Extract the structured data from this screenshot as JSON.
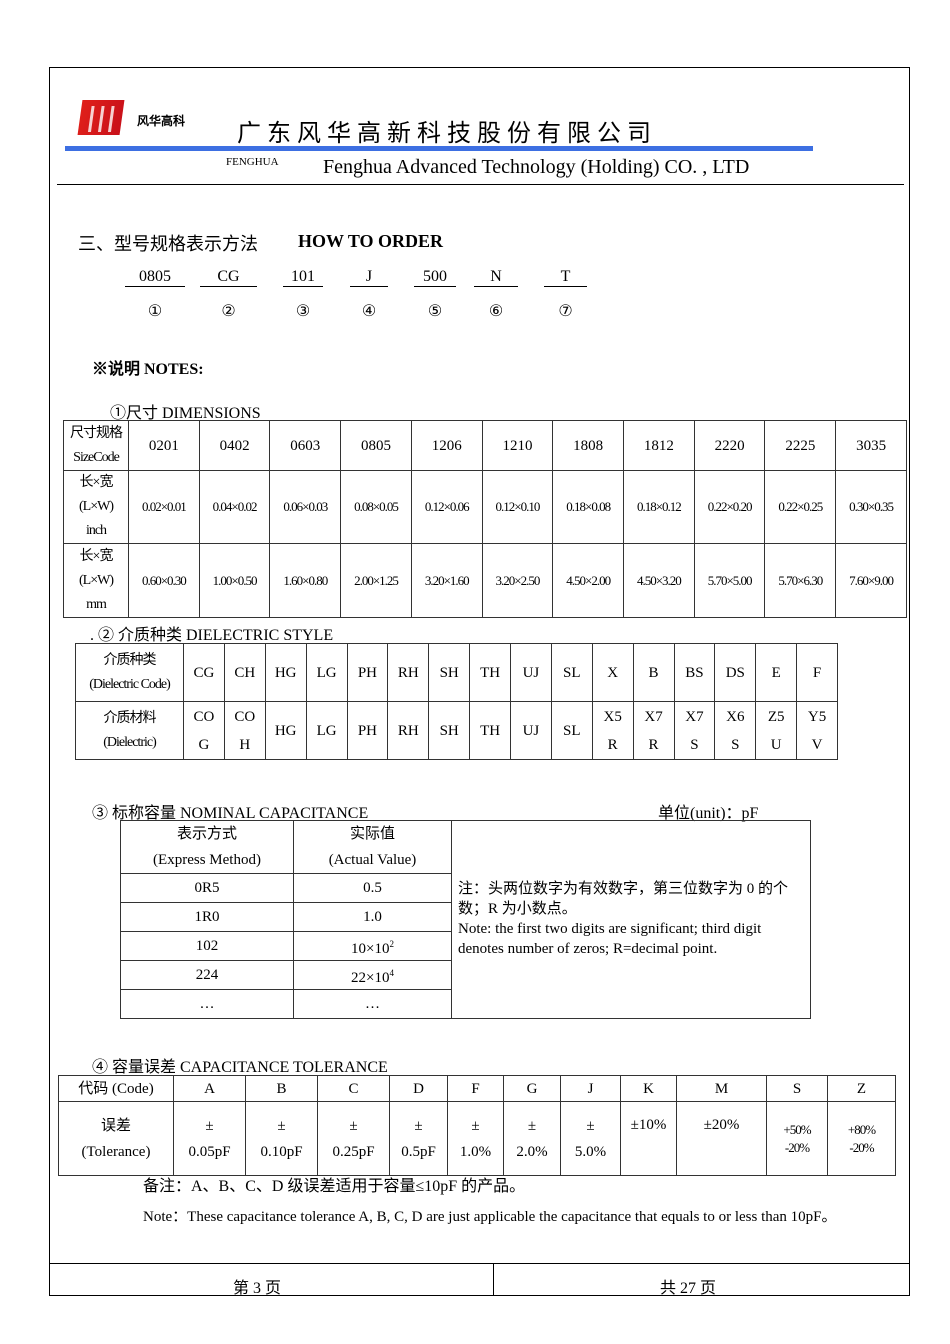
{
  "header": {
    "logo_text": "风华高科",
    "company_cn": "广 东 风 华 高 新 科 技 股 份 有 限 公 司",
    "brand": "FENGHUA",
    "company_en": "Fenghua Advanced Technology (Holding) CO. , LTD"
  },
  "section": {
    "title_cn": "三、型号规格表示方法",
    "title_en": "HOW TO ORDER"
  },
  "order_codes": [
    "0805",
    "CG",
    "101",
    "J",
    "500",
    "N",
    "T"
  ],
  "order_marks": [
    "①",
    "②",
    "③",
    "④",
    "⑤",
    "⑥",
    "⑦"
  ],
  "notes_title": "※说明  NOTES:",
  "dimensions": {
    "title": "①尺寸    DIMENSIONS",
    "row_labels": [
      [
        "尺寸规格",
        "SizeCode"
      ],
      [
        "长×宽",
        "(L×W)",
        "inch"
      ],
      [
        "长×宽",
        "(L×W)",
        "mm"
      ]
    ],
    "codes": [
      "0201",
      "0402",
      "0603",
      "0805",
      "1206",
      "1210",
      "1808",
      "1812",
      "2220",
      "2225",
      "3035"
    ],
    "inch": [
      "0.02×0.01",
      "0.04×0.02",
      "0.06×0.03",
      "0.08×0.05",
      "0.12×0.06",
      "0.12×0.10",
      "0.18×0.08",
      "0.18×0.12",
      "0.22×0.20",
      "0.22×0.25",
      "0.30×0.35"
    ],
    "mm": [
      "0.60×0.30",
      "1.00×0.50",
      "1.60×0.80",
      "2.00×1.25",
      "3.20×1.60",
      "3.20×2.50",
      "4.50×2.00",
      "4.50×3.20",
      "5.70×5.00",
      "5.70×6.30",
      "7.60×9.00"
    ]
  },
  "dielectric": {
    "title": ".  ②  介质种类 DIELECTRIC STYLE",
    "row_labels": [
      [
        "介质种类",
        "(Dielectric Code)"
      ],
      [
        "介质材料",
        "(Dielectric)"
      ]
    ],
    "codes": [
      "CG",
      "CH",
      "HG",
      "LG",
      "PH",
      "RH",
      "SH",
      "TH",
      "UJ",
      "SL",
      "X",
      "B",
      "BS",
      "DS",
      "E",
      "F"
    ],
    "materials": [
      [
        "CO",
        "G"
      ],
      [
        "CO",
        "H"
      ],
      [
        "HG"
      ],
      [
        "LG"
      ],
      [
        "PH"
      ],
      [
        "RH"
      ],
      [
        "SH"
      ],
      [
        "TH"
      ],
      [
        "UJ"
      ],
      [
        "SL"
      ],
      [
        "X5",
        "R"
      ],
      [
        "X7",
        "R"
      ],
      [
        "X7",
        "S"
      ],
      [
        "X6",
        "S"
      ],
      [
        "Z5",
        "U"
      ],
      [
        "Y5",
        "V"
      ]
    ]
  },
  "capacitance": {
    "title": "③  标称容量  NOMINAL CAPACITANCE",
    "unit": "单位(unit)：pF",
    "headers": [
      [
        "表示方式",
        "(Express Method)"
      ],
      [
        "实际值",
        "(Actual Value)"
      ]
    ],
    "rows": [
      [
        "0R5",
        "0.5"
      ],
      [
        "1R0",
        "1.0"
      ],
      [
        "102",
        "10×10",
        "2"
      ],
      [
        "224",
        "22×10",
        "4"
      ],
      [
        "…",
        "…"
      ]
    ],
    "note_cn": "注：头两位数字为有效数字，第三位数字为 0 的个数；R 为小数点。",
    "note_en": "Note: the first two digits are significant; third digit denotes number of zeros; R=decimal point."
  },
  "tolerance": {
    "title": "④  容量误差 CAPACITANCE TOLERANCE",
    "row_labels": [
      [
        "代码  (Code)"
      ],
      [
        "误差",
        "(Tolerance)"
      ]
    ],
    "codes": [
      "A",
      "B",
      "C",
      "D",
      "F",
      "G",
      "J",
      "K",
      "M",
      "S",
      "Z"
    ],
    "values": [
      [
        "±",
        "0.05pF"
      ],
      [
        "±",
        "0.10pF"
      ],
      [
        "±",
        "0.25pF"
      ],
      [
        "±",
        "0.5pF"
      ],
      [
        "±",
        "1.0%"
      ],
      [
        "±",
        "2.0%"
      ],
      [
        "±",
        "5.0%"
      ],
      [
        "±10%"
      ],
      [
        "±20%"
      ],
      [
        "+50%",
        "-20%"
      ],
      [
        "+80%",
        "-20%"
      ]
    ],
    "remark_cn": "备注：A、B、C、D 级误差适用于容量≤10pF 的产品。",
    "remark_en": "Note：These capacitance tolerance A, B, C, D are just applicable the capacitance that equals to or less than 10pF。"
  },
  "footer": {
    "page": "第   3   页",
    "total": "共   27   页"
  },
  "colors": {
    "brand_red": "#d8181a",
    "rule_blue": "#3d6fe2"
  }
}
